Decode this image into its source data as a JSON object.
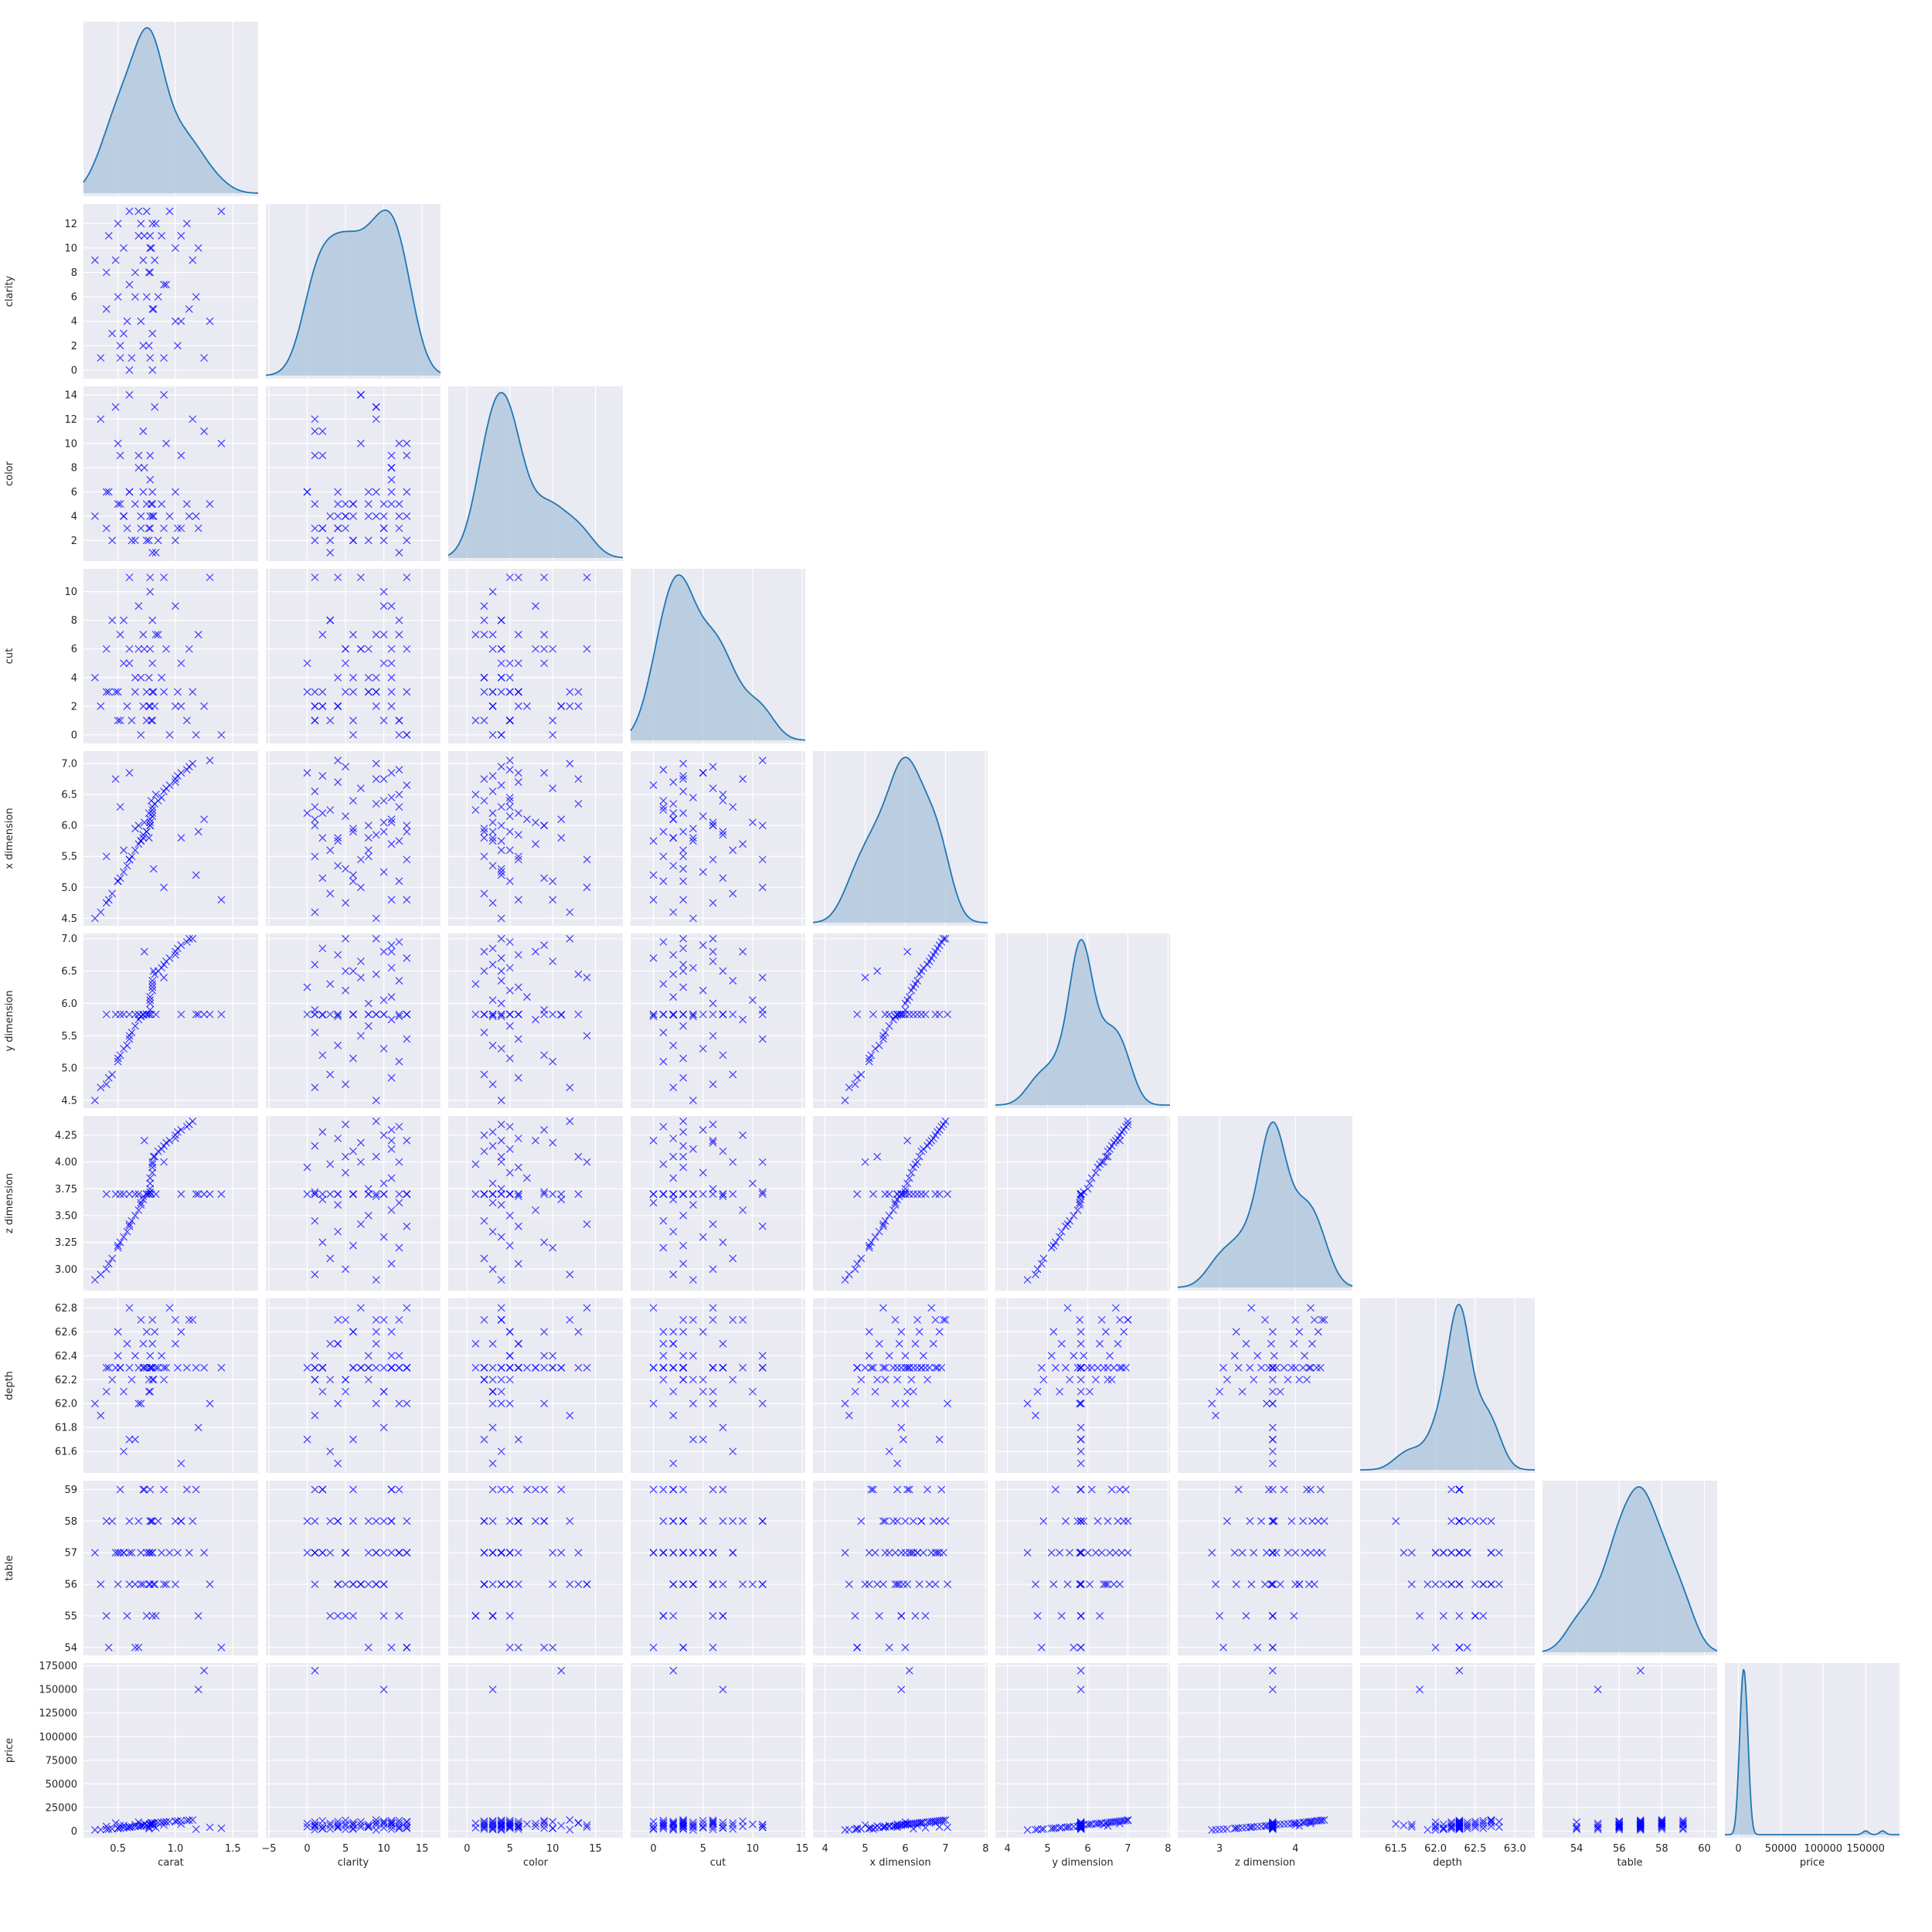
{
  "chart_data": {
    "type": "pairplot",
    "variables": [
      "carat",
      "clarity",
      "color",
      "cut",
      "x dimension",
      "y dimension",
      "z dimension",
      "depth",
      "table",
      "price"
    ],
    "corner": true,
    "diag_kind": "kde",
    "off_diag_kind": "scatter",
    "marker": "x",
    "colors": {
      "background": "#ffffff",
      "axes_face": "#eaeaf2",
      "grid": "#ffffff",
      "kde_line": "#1f77b4",
      "kde_fill": "#b3c9de",
      "markers": "#0000ff"
    },
    "grid": true,
    "axes": {
      "carat": {
        "range": [
          0.2,
          1.72
        ],
        "ticks": [
          0.5,
          1.0,
          1.5
        ],
        "tick_labels": [
          "0.5",
          "1.0",
          "1.5"
        ]
      },
      "clarity": {
        "range": [
          -5.4,
          17.4
        ],
        "ticks": [
          -5,
          0,
          5,
          10,
          15
        ],
        "tick_labels": [
          "−5",
          "0",
          "5",
          "10",
          "15"
        ],
        "y_ticks": [
          0,
          2,
          4,
          6,
          8,
          10,
          12
        ],
        "y_tick_labels": [
          "0",
          "2",
          "4",
          "6",
          "8",
          "10",
          "12"
        ],
        "y_range": [
          -0.7,
          13.6
        ]
      },
      "color": {
        "range": [
          -2.2,
          18.2
        ],
        "ticks": [
          0,
          5,
          10,
          15
        ],
        "tick_labels": [
          "0",
          "5",
          "10",
          "15"
        ],
        "y_ticks": [
          2,
          4,
          6,
          8,
          10,
          12,
          14
        ],
        "y_tick_labels": [
          "2",
          "4",
          "6",
          "8",
          "10",
          "12",
          "14"
        ],
        "y_range": [
          0.3,
          14.7
        ]
      },
      "cut": {
        "range": [
          -2.3,
          15.3
        ],
        "ticks": [
          0,
          5,
          10,
          15
        ],
        "tick_labels": [
          "0",
          "5",
          "10",
          "15"
        ],
        "y_ticks": [
          0,
          2,
          4,
          6,
          8,
          10
        ],
        "y_tick_labels": [
          "0",
          "2",
          "4",
          "6",
          "8",
          "10"
        ],
        "y_range": [
          -0.6,
          11.6
        ]
      },
      "x dimension": {
        "range": [
          3.7,
          8.05
        ],
        "ticks": [
          4,
          5,
          6,
          7,
          8
        ],
        "tick_labels": [
          "4",
          "5",
          "6",
          "7",
          "8"
        ],
        "y_ticks": [
          4.5,
          5.0,
          5.5,
          6.0,
          6.5,
          7.0
        ],
        "y_tick_labels": [
          "4.5",
          "5.0",
          "5.5",
          "6.0",
          "6.5",
          "7.0"
        ],
        "y_range": [
          4.38,
          7.2
        ]
      },
      "y dimension": {
        "range": [
          3.7,
          8.05
        ],
        "ticks": [
          4,
          5,
          6,
          7,
          8
        ],
        "tick_labels": [
          "4",
          "5",
          "6",
          "7",
          "8"
        ],
        "y_ticks": [
          4.5,
          5.0,
          5.5,
          6.0,
          6.5,
          7.0
        ],
        "y_tick_labels": [
          "4.5",
          "5.0",
          "5.5",
          "6.0",
          "6.5",
          "7.0"
        ],
        "y_range": [
          4.38,
          7.08
        ]
      },
      "z dimension": {
        "range": [
          2.45,
          4.75
        ],
        "ticks": [
          3,
          4
        ],
        "tick_labels": [
          "3",
          "4"
        ],
        "y_ticks": [
          3.0,
          3.25,
          3.5,
          3.75,
          4.0,
          4.25
        ],
        "y_tick_labels": [
          "3.00",
          "3.25",
          "3.50",
          "3.75",
          "4.00",
          "4.25"
        ],
        "y_range": [
          2.8,
          4.43
        ]
      },
      "depth": {
        "range": [
          61.05,
          63.25
        ],
        "ticks": [
          61.5,
          62.0,
          62.5,
          63.0
        ],
        "tick_labels": [
          "61.5",
          "62.0",
          "62.5",
          "63.0"
        ],
        "y_ticks": [
          61.6,
          61.8,
          62.0,
          62.2,
          62.4,
          62.6,
          62.8
        ],
        "y_tick_labels": [
          "61.6",
          "61.8",
          "62.0",
          "62.2",
          "62.4",
          "62.6",
          "62.8"
        ],
        "y_range": [
          61.42,
          62.88
        ]
      },
      "table": {
        "range": [
          52.4,
          60.6
        ],
        "ticks": [
          54,
          56,
          58,
          60
        ],
        "tick_labels": [
          "54",
          "56",
          "58",
          "60"
        ],
        "y_ticks": [
          54,
          55,
          56,
          57,
          58,
          59
        ],
        "y_tick_labels": [
          "54",
          "55",
          "56",
          "57",
          "58",
          "59"
        ],
        "y_range": [
          53.75,
          59.28
        ]
      },
      "price": {
        "range": [
          -16000,
          190000
        ],
        "ticks": [
          0,
          50000,
          100000,
          150000
        ],
        "tick_labels": [
          "0",
          "50000",
          "100000",
          "150000"
        ],
        "y_ticks": [
          0,
          25000,
          50000,
          75000,
          100000,
          125000,
          150000,
          175000
        ],
        "y_tick_labels": [
          "0",
          "25000",
          "50000",
          "75000",
          "100000",
          "125000",
          "150000",
          "175000"
        ],
        "y_range": [
          -7000,
          178000
        ]
      }
    },
    "diagonal_kde_peaks": [
      {
        "variable": "carat",
        "modes": [
          0.78
        ]
      },
      {
        "variable": "clarity",
        "modes": [
          4.8,
          10.5
        ]
      },
      {
        "variable": "color",
        "modes": [
          4.2,
          10.5,
          13.5
        ]
      },
      {
        "variable": "cut",
        "modes": [
          2.5,
          7,
          11
        ]
      },
      {
        "variable": "x dimension",
        "modes": [
          5.8,
          6.6
        ]
      },
      {
        "variable": "y dimension",
        "modes": [
          5.83
        ]
      },
      {
        "variable": "z dimension",
        "modes": [
          3.7
        ]
      },
      {
        "variable": "depth",
        "modes": [
          62.3
        ]
      },
      {
        "variable": "table",
        "modes": [
          57
        ]
      },
      {
        "variable": "price",
        "modes": [
          4000
        ]
      }
    ],
    "observations": {
      "carat": [
        0.3,
        0.35,
        0.4,
        0.42,
        0.45,
        0.5,
        0.5,
        0.52,
        0.55,
        0.58,
        0.6,
        0.6,
        0.62,
        0.65,
        0.68,
        0.7,
        0.7,
        0.72,
        0.72,
        0.75,
        0.75,
        0.78,
        0.78,
        0.78,
        0.78,
        0.8,
        0.8,
        0.8,
        0.8,
        0.82,
        0.85,
        0.88,
        0.9,
        0.92,
        0.95,
        1.0,
        1.0,
        1.02,
        1.05,
        1.1,
        1.12,
        1.15,
        1.2,
        1.25,
        1.3,
        1.4,
        0.4,
        0.55,
        0.65,
        0.73,
        0.77,
        0.79,
        0.81,
        0.83,
        0.6,
        0.9,
        1.05,
        0.48,
        0.68,
        1.18,
        0.77,
        0.52
      ],
      "clarity": [
        9,
        1,
        5,
        11,
        3,
        12,
        6,
        2,
        10,
        4,
        13,
        7,
        1,
        8,
        11,
        4,
        12,
        2,
        9,
        6,
        13,
        1,
        8,
        10,
        11,
        5,
        0,
        3,
        12,
        9,
        6,
        11,
        1,
        7,
        13,
        4,
        10,
        2,
        11,
        12,
        5,
        9,
        10,
        1,
        4,
        13,
        8,
        3,
        6,
        11,
        2,
        10,
        5,
        12,
        0,
        7,
        4,
        9,
        13,
        6,
        8,
        1
      ],
      "color": [
        4,
        12,
        3,
        6,
        2,
        10,
        5,
        9,
        4,
        3,
        6,
        14,
        2,
        5,
        8,
        4,
        3,
        11,
        6,
        5,
        2,
        9,
        4,
        3,
        7,
        5,
        6,
        1,
        4,
        13,
        2,
        5,
        3,
        10,
        4,
        6,
        2,
        3,
        9,
        5,
        4,
        12,
        3,
        11,
        5,
        10,
        6,
        4,
        2,
        8,
        3,
        5,
        4,
        1,
        6,
        14,
        3,
        13,
        9,
        4,
        2,
        5
      ],
      "cut": [
        4,
        2,
        6,
        3,
        8,
        1,
        3,
        7,
        5,
        2,
        11,
        6,
        1,
        3,
        9,
        4,
        0,
        2,
        7,
        1,
        3,
        11,
        6,
        10,
        2,
        5,
        3,
        1,
        8,
        2,
        7,
        4,
        3,
        6,
        0,
        2,
        9,
        3,
        5,
        1,
        6,
        3,
        7,
        2,
        11,
        0,
        3,
        8,
        4,
        6,
        2,
        1,
        3,
        7,
        5,
        11,
        2,
        3,
        6,
        0,
        4,
        1
      ],
      "x dimension": [
        4.5,
        4.6,
        4.75,
        4.8,
        4.9,
        5.1,
        5.1,
        5.15,
        5.25,
        5.35,
        5.45,
        5.45,
        5.5,
        5.6,
        5.7,
        5.75,
        5.75,
        5.8,
        5.85,
        5.9,
        5.9,
        6.0,
        6.0,
        6.05,
        6.1,
        6.15,
        6.2,
        6.25,
        6.3,
        6.35,
        6.4,
        6.45,
        6.55,
        6.6,
        6.65,
        6.7,
        6.75,
        6.8,
        6.85,
        6.9,
        6.95,
        7.0,
        5.9,
        6.1,
        7.05,
        4.8,
        5.5,
        5.6,
        5.95,
        6.05,
        6.2,
        6.4,
        5.3,
        6.5,
        6.85,
        5.0,
        5.8,
        6.75,
        6.0,
        5.2,
        5.8,
        6.3
      ],
      "y dimension": [
        4.5,
        4.7,
        4.75,
        4.85,
        4.9,
        5.1,
        5.15,
        5.2,
        5.3,
        5.35,
        5.45,
        5.5,
        5.55,
        5.65,
        5.75,
        5.8,
        5.8,
        5.82,
        5.83,
        5.83,
        5.83,
        5.9,
        6.0,
        6.05,
        6.1,
        6.2,
        6.25,
        6.3,
        6.35,
        6.45,
        6.5,
        6.55,
        6.6,
        6.65,
        6.7,
        6.75,
        6.8,
        6.85,
        6.9,
        6.95,
        7.0,
        7.0,
        5.83,
        5.83,
        5.83,
        5.83,
        5.83,
        5.83,
        5.83,
        6.8,
        5.83,
        5.83,
        6.5,
        5.83,
        5.83,
        6.4,
        5.83,
        5.83,
        5.83,
        5.83,
        5.83,
        5.83
      ],
      "z dimension": [
        2.9,
        2.95,
        3.0,
        3.05,
        3.1,
        3.2,
        3.22,
        3.25,
        3.3,
        3.35,
        3.4,
        3.42,
        3.45,
        3.5,
        3.55,
        3.6,
        3.62,
        3.65,
        3.68,
        3.7,
        3.7,
        3.72,
        3.75,
        3.8,
        3.85,
        3.9,
        3.95,
        3.98,
        4.0,
        4.05,
        4.1,
        4.12,
        4.15,
        4.18,
        4.2,
        4.22,
        4.25,
        4.28,
        4.3,
        4.33,
        4.35,
        4.38,
        3.7,
        3.7,
        3.7,
        3.7,
        3.7,
        3.7,
        3.7,
        4.2,
        3.7,
        3.7,
        4.05,
        3.7,
        3.7,
        4.0,
        3.7,
        3.7,
        3.7,
        3.7,
        3.7,
        3.7
      ],
      "depth": [
        62.0,
        61.9,
        62.1,
        62.3,
        62.2,
        62.4,
        62.6,
        62.3,
        62.1,
        62.5,
        62.3,
        62.8,
        62.2,
        62.4,
        62.3,
        62.7,
        62.0,
        62.3,
        62.5,
        62.6,
        62.3,
        62.4,
        62.3,
        62.1,
        62.3,
        62.2,
        62.3,
        62.5,
        62.7,
        62.6,
        62.3,
        62.4,
        62.2,
        62.3,
        62.8,
        62.5,
        62.7,
        62.3,
        62.6,
        62.3,
        62.7,
        62.7,
        61.8,
        62.3,
        62.0,
        62.3,
        62.3,
        61.6,
        61.7,
        62.3,
        62.1,
        62.3,
        62.2,
        62.3,
        61.7,
        62.3,
        61.5,
        62.3,
        62.0,
        62.3,
        62.2,
        62.3
      ],
      "table": [
        57,
        56,
        55,
        54,
        58,
        57,
        56,
        59,
        57,
        55,
        58,
        56,
        57,
        54,
        58,
        56,
        57,
        59,
        56,
        55,
        57,
        58,
        57,
        56,
        59,
        57,
        58,
        55,
        57,
        56,
        58,
        57,
        59,
        56,
        57,
        58,
        56,
        57,
        58,
        59,
        57,
        58,
        55,
        57,
        56,
        54,
        58,
        57,
        56,
        59,
        57,
        58,
        56,
        55,
        57,
        56,
        58,
        57,
        54,
        59,
        56,
        57
      ],
      "price": [
        1200,
        1500,
        1800,
        2000,
        2300,
        2800,
        3000,
        3200,
        3500,
        3800,
        4000,
        4200,
        4500,
        4800,
        5000,
        5200,
        5500,
        5800,
        6000,
        6200,
        6500,
        6800,
        7000,
        7200,
        7500,
        7800,
        8000,
        8200,
        8500,
        8800,
        9000,
        9200,
        9500,
        9800,
        10000,
        10200,
        10500,
        10800,
        11000,
        11200,
        11500,
        11800,
        150000,
        170000,
        4000,
        3000,
        5000,
        6000,
        7000,
        8000,
        2500,
        9000,
        5500,
        3500,
        4500,
        6500,
        7500,
        8500,
        9500,
        2000,
        4000,
        6000
      ]
    }
  }
}
